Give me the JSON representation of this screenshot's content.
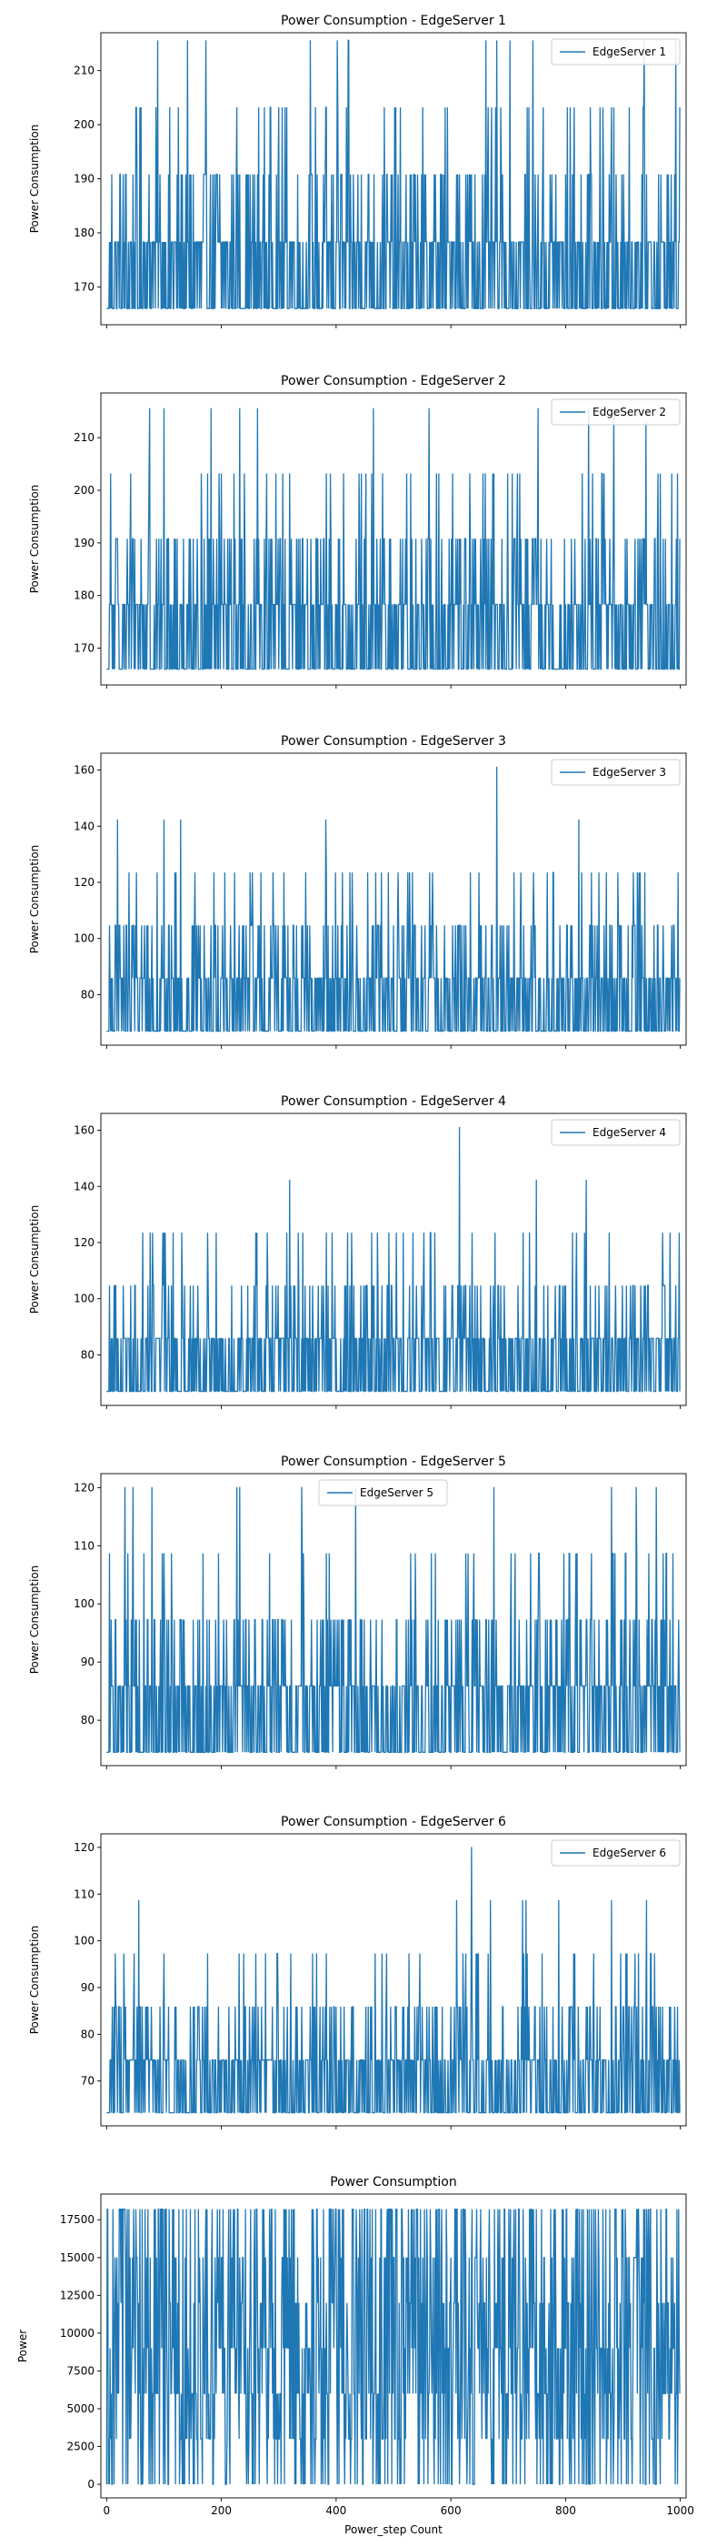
{
  "figure": {
    "x_axis_label": "Power_step Count"
  },
  "chart_data": [
    {
      "type": "line",
      "title": "Power Consumption - EdgeServer 1",
      "ylabel": "Power Consumption",
      "xlabel": "",
      "series": [
        {
          "name": "EdgeServer 1",
          "color": "#1f77b4",
          "levels": [
            166,
            178.3,
            190.8,
            203.2,
            215.6
          ],
          "level_weights": [
            0.47,
            0.33,
            0.15,
            0.045,
            0.005
          ],
          "features": [
            {
              "x": 355,
              "y": 215.6
            },
            {
              "x": 402,
              "y": 215.6
            }
          ]
        }
      ],
      "xlim": [
        -10,
        1010
      ],
      "ylim": [
        163,
        217
      ],
      "yticks": [
        170,
        180,
        190,
        200,
        210
      ],
      "xticks": [
        0,
        200,
        400,
        600,
        800,
        1000
      ],
      "show_x_tick_labels": false,
      "legend": "upper right",
      "grid": false
    },
    {
      "type": "line",
      "title": "Power Consumption - EdgeServer 2",
      "ylabel": "Power Consumption",
      "xlabel": "",
      "series": [
        {
          "name": "EdgeServer 2",
          "color": "#1f77b4",
          "levels": [
            166,
            178.3,
            190.8,
            203.2,
            215.6
          ],
          "level_weights": [
            0.47,
            0.33,
            0.15,
            0.045,
            0.005
          ],
          "features": [
            {
              "x": 75,
              "y": 215.6
            },
            {
              "x": 232,
              "y": 215.6
            },
            {
              "x": 263,
              "y": 215.6
            },
            {
              "x": 562,
              "y": 215.6
            },
            {
              "x": 752,
              "y": 215.6
            },
            {
              "x": 940,
              "y": 213
            }
          ]
        }
      ],
      "xlim": [
        -10,
        1010
      ],
      "ylim": [
        163,
        218.5
      ],
      "yticks": [
        170,
        180,
        190,
        200,
        210
      ],
      "xticks": [
        0,
        200,
        400,
        600,
        800,
        1000
      ],
      "show_x_tick_labels": false,
      "legend": "upper right",
      "grid": false
    },
    {
      "type": "line",
      "title": "Power Consumption - EdgeServer 3",
      "ylabel": "Power Consumption",
      "xlabel": "",
      "series": [
        {
          "name": "EdgeServer 3",
          "color": "#1f77b4",
          "levels": [
            67,
            85.9,
            104.7,
            123.5,
            142.4
          ],
          "level_weights": [
            0.47,
            0.33,
            0.15,
            0.045,
            0.005
          ],
          "features": [
            {
              "x": 680,
              "y": 161.2
            }
          ]
        }
      ],
      "xlim": [
        -10,
        1010
      ],
      "ylim": [
        62,
        166
      ],
      "yticks": [
        80,
        100,
        120,
        140,
        160
      ],
      "xticks": [
        0,
        200,
        400,
        600,
        800,
        1000
      ],
      "show_x_tick_labels": false,
      "legend": "upper right",
      "grid": false
    },
    {
      "type": "line",
      "title": "Power Consumption - EdgeServer 4",
      "ylabel": "Power Consumption",
      "xlabel": "",
      "series": [
        {
          "name": "EdgeServer 4",
          "color": "#1f77b4",
          "levels": [
            67,
            85.9,
            104.7,
            123.5,
            142.4
          ],
          "level_weights": [
            0.47,
            0.33,
            0.15,
            0.045,
            0.005
          ],
          "features": [
            {
              "x": 615,
              "y": 161.2
            }
          ]
        }
      ],
      "xlim": [
        -10,
        1010
      ],
      "ylim": [
        62,
        166
      ],
      "yticks": [
        80,
        100,
        120,
        140,
        160
      ],
      "xticks": [
        0,
        200,
        400,
        600,
        800,
        1000
      ],
      "show_x_tick_labels": false,
      "legend": "upper right",
      "grid": false
    },
    {
      "type": "line",
      "title": "Power Consumption - EdgeServer 5",
      "ylabel": "Power Consumption",
      "xlabel": "",
      "series": [
        {
          "name": "EdgeServer 5",
          "color": "#1f77b4",
          "levels": [
            74.5,
            85.9,
            97.3,
            108.7,
            120.1
          ],
          "level_weights": [
            0.47,
            0.33,
            0.15,
            0.045,
            0.005
          ],
          "features": [
            {
              "x": 32,
              "y": 120.1
            },
            {
              "x": 46,
              "y": 120.1
            },
            {
              "x": 340,
              "y": 120.1
            },
            {
              "x": 675,
              "y": 120.1
            },
            {
              "x": 880,
              "y": 120.1
            },
            {
              "x": 958,
              "y": 120.1
            }
          ]
        }
      ],
      "xlim": [
        -10,
        1010
      ],
      "ylim": [
        72.2,
        122.4
      ],
      "yticks": [
        80,
        90,
        100,
        110,
        120
      ],
      "xticks": [
        0,
        200,
        400,
        600,
        800,
        1000
      ],
      "show_x_tick_labels": false,
      "legend": "upper center",
      "grid": false
    },
    {
      "type": "line",
      "title": "Power Consumption - EdgeServer 6",
      "ylabel": "Power Consumption",
      "xlabel": "",
      "series": [
        {
          "name": "EdgeServer 6",
          "color": "#1f77b4",
          "levels": [
            63.2,
            74.5,
            85.9,
            97.3,
            108.7
          ],
          "level_weights": [
            0.47,
            0.33,
            0.15,
            0.045,
            0.005
          ],
          "features": [
            {
              "x": 636,
              "y": 120.1
            }
          ]
        }
      ],
      "xlim": [
        -10,
        1010
      ],
      "ylim": [
        60.4,
        122.9
      ],
      "yticks": [
        70,
        80,
        90,
        100,
        110,
        120
      ],
      "xticks": [
        0,
        200,
        400,
        600,
        800,
        1000
      ],
      "show_x_tick_labels": false,
      "legend": "upper right",
      "grid": false
    },
    {
      "type": "line",
      "title": "Power Consumption",
      "ylabel": "Power",
      "xlabel": "Power_step Count",
      "series": [
        {
          "name": "",
          "color": "#1f77b4",
          "levels": [
            0,
            3000,
            6000,
            9000,
            12000,
            15000,
            18200
          ],
          "level_weights": [
            0.18,
            0.12,
            0.16,
            0.12,
            0.1,
            0.12,
            0.2
          ],
          "features": []
        }
      ],
      "xlim": [
        -10,
        1010
      ],
      "ylim": [
        -900,
        19200
      ],
      "yticks": [
        0,
        2500,
        5000,
        7500,
        10000,
        12500,
        15000,
        17500
      ],
      "xticks": [
        0,
        200,
        400,
        600,
        800,
        1000
      ],
      "show_x_tick_labels": true,
      "legend": "none",
      "grid": false
    }
  ]
}
